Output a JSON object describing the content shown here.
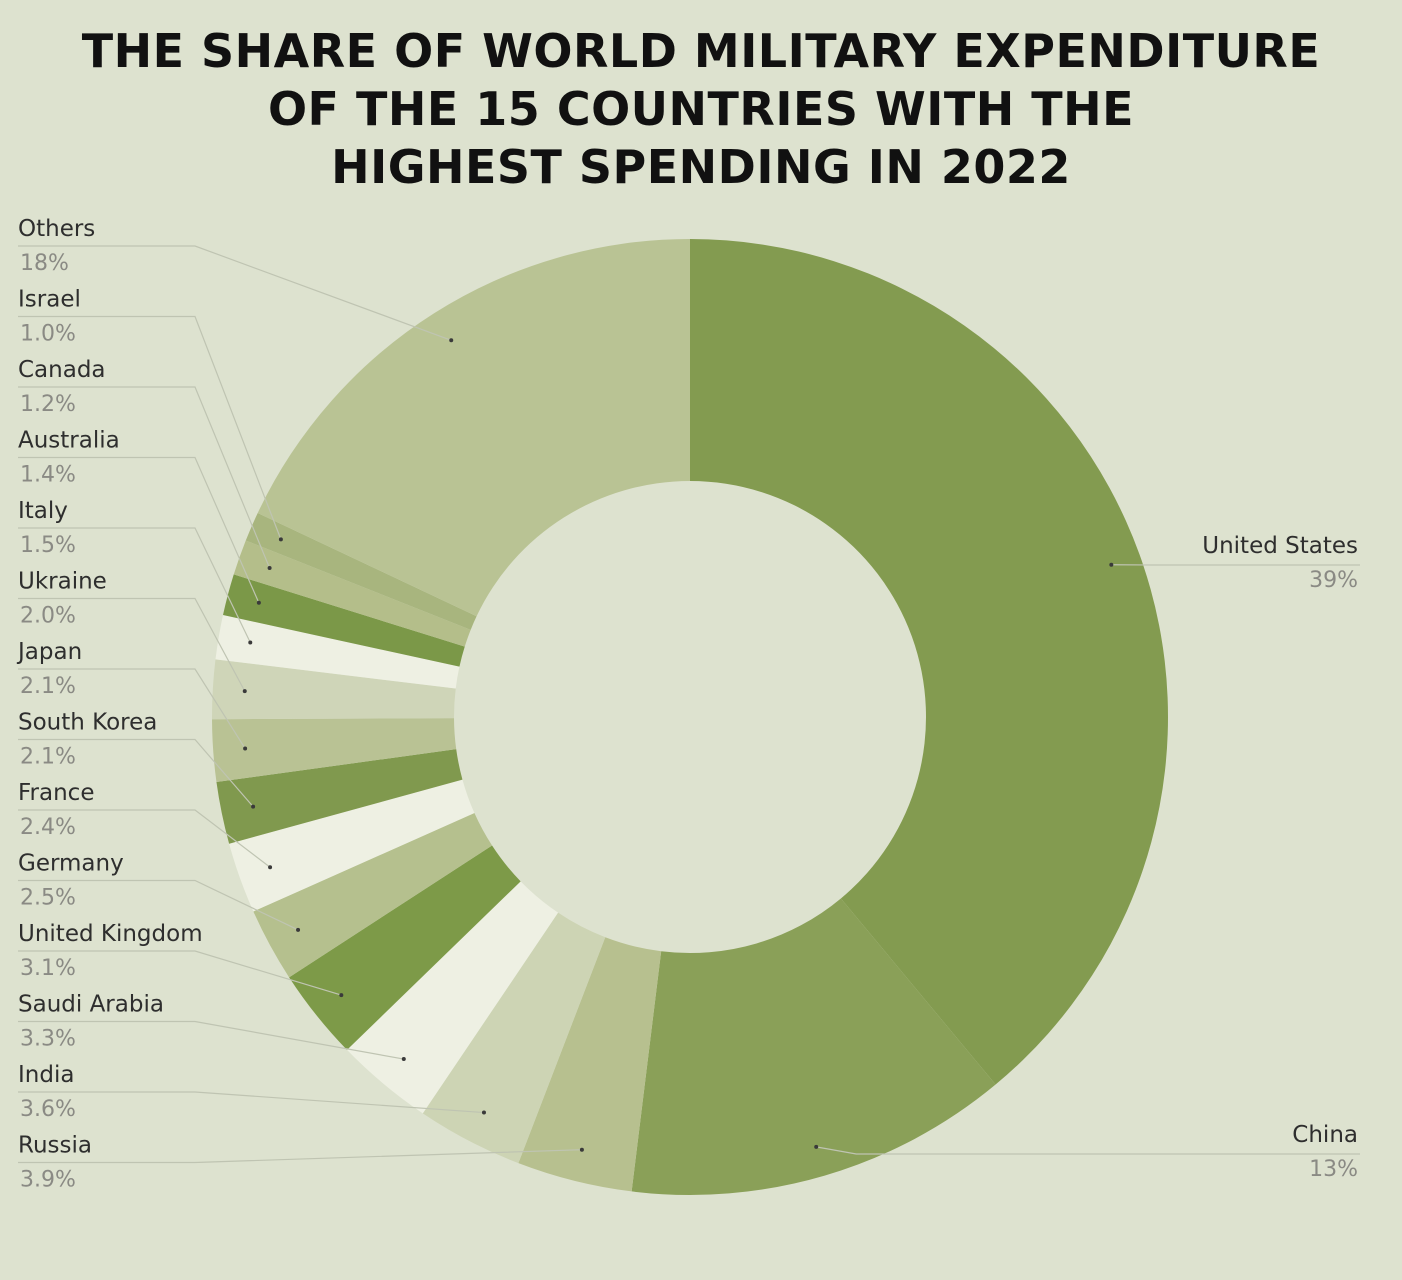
{
  "chart_data": {
    "type": "pie",
    "variant": "donut",
    "title_lines": [
      "THE SHARE OF WORLD MILITARY EXPENDITURE",
      "OF THE 15 COUNTRIES WITH THE",
      "HIGHEST SPENDING IN 2022"
    ],
    "legend_position": "left and right of chart",
    "slices": [
      {
        "name": "United States",
        "value": 39,
        "label": "39%",
        "color": "#839b50",
        "side": "right"
      },
      {
        "name": "China",
        "value": 13,
        "label": "13%",
        "color": "#8aa058",
        "side": "right"
      },
      {
        "name": "Russia",
        "value": 3.9,
        "label": "3.9%",
        "color": "#b7c08f",
        "side": "left"
      },
      {
        "name": "India",
        "value": 3.6,
        "label": "3.6%",
        "color": "#cdd4b4",
        "side": "left"
      },
      {
        "name": "Saudi Arabia",
        "value": 3.3,
        "label": "3.3%",
        "color": "#eef0e3",
        "side": "left"
      },
      {
        "name": "United Kingdom",
        "value": 3.1,
        "label": "3.1%",
        "color": "#7d9a48",
        "side": "left"
      },
      {
        "name": "Germany",
        "value": 2.5,
        "label": "2.5%",
        "color": "#b5c08e",
        "side": "left"
      },
      {
        "name": "France",
        "value": 2.4,
        "label": "2.4%",
        "color": "#eef0e3",
        "side": "left"
      },
      {
        "name": "South Korea",
        "value": 2.1,
        "label": "2.1%",
        "color": "#80994e",
        "side": "left"
      },
      {
        "name": "Japan",
        "value": 2.1,
        "label": "2.1%",
        "color": "#b9c294",
        "side": "left"
      },
      {
        "name": "Ukraine",
        "value": 2.0,
        "label": "2.0%",
        "color": "#cfd5b8",
        "side": "left"
      },
      {
        "name": "Italy",
        "value": 1.5,
        "label": "1.5%",
        "color": "#eef0e3",
        "side": "left"
      },
      {
        "name": "Australia",
        "value": 1.4,
        "label": "1.4%",
        "color": "#7b9848",
        "side": "left"
      },
      {
        "name": "Canada",
        "value": 1.2,
        "label": "1.2%",
        "color": "#b4be8a",
        "side": "left"
      },
      {
        "name": "Israel",
        "value": 1.0,
        "label": "1.0%",
        "color": "#a8b57e",
        "side": "left"
      },
      {
        "name": "Others",
        "value": 18,
        "label": "18%",
        "color": "#b9c394",
        "side": "left"
      }
    ]
  }
}
